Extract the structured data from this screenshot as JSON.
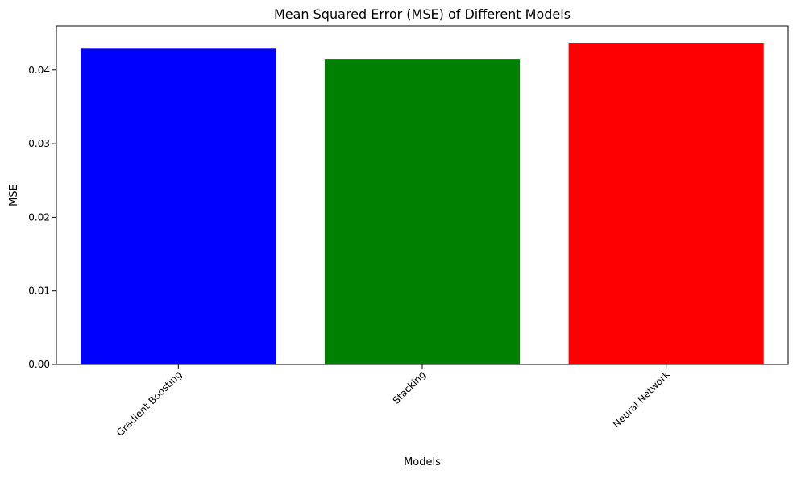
{
  "chart_data": {
    "type": "bar",
    "title": "Mean Squared Error (MSE) of Different Models",
    "xlabel": "Models",
    "ylabel": "MSE",
    "categories": [
      "Gradient Boosting",
      "Stacking",
      "Neural Network"
    ],
    "values": [
      0.0429,
      0.0415,
      0.0437
    ],
    "bar_colors": [
      "#0000ff",
      "#008000",
      "#ff0000"
    ],
    "ylim": [
      0,
      0.046
    ],
    "yticks": [
      0.0,
      0.01,
      0.02,
      0.03,
      0.04
    ],
    "ytick_labels": [
      "0.00",
      "0.01",
      "0.02",
      "0.03",
      "0.04"
    ],
    "xtick_rotation": 45,
    "grid": false,
    "legend": false
  }
}
